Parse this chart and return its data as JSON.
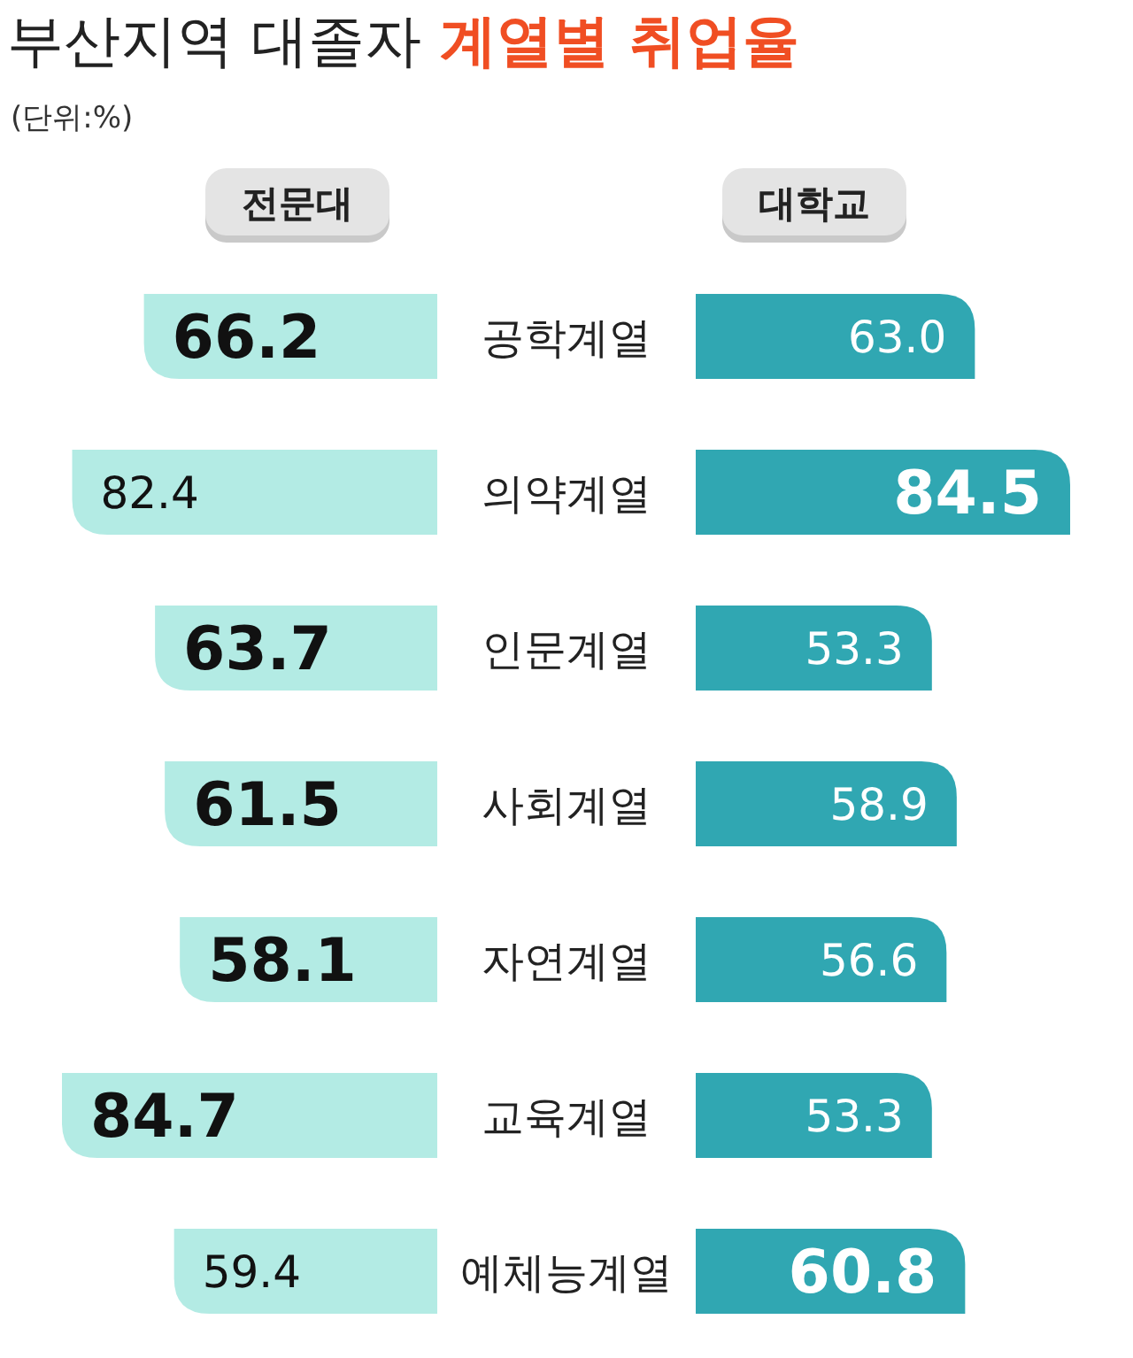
{
  "chart_data": [
    {
      "type": "bar",
      "orientation": "horizontal",
      "title": "부산지역 대졸자",
      "subtitle": "계열별 취업율",
      "annotations": [
        "(단위:%)"
      ],
      "categories": [
        "공학계열",
        "의약계열",
        "인문계열",
        "사회계열",
        "자연계열",
        "교육계열",
        "예체능계열"
      ],
      "series": [
        {
          "name": "전문대",
          "color": "#b3ebe4",
          "values": [
            66.2,
            82.4,
            63.7,
            61.5,
            58.1,
            84.7,
            59.4
          ],
          "value_labels": [
            "66.2",
            "82.4",
            "63.7",
            "61.5",
            "58.1",
            "84.7",
            "59.4"
          ]
        }
      ],
      "legend": "top"
    },
    {
      "type": "bar",
      "orientation": "horizontal",
      "categories": [
        null,
        null,
        null,
        null,
        null,
        null,
        null
      ],
      "series": [
        {
          "name": "대학교",
          "color": "#30a7b2",
          "values": [
            63.0,
            84.5,
            53.3,
            58.9,
            56.6,
            53.3,
            60.8
          ],
          "value_labels": [
            "63.0",
            "84.5",
            "53.3",
            "58.9",
            "56.6",
            "53.3",
            "60.8"
          ]
        }
      ],
      "legend": "top"
    }
  ]
}
